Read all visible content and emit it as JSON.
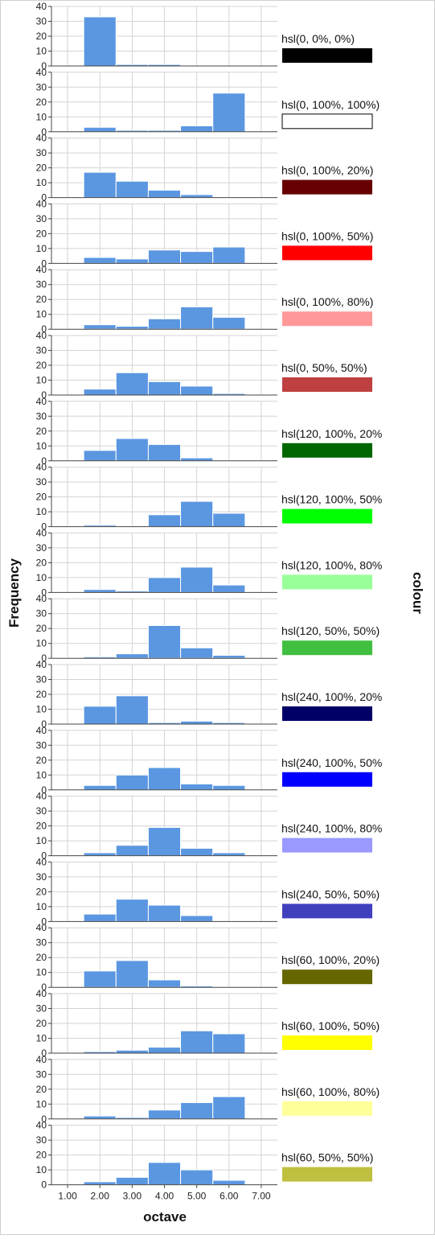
{
  "chart_data": {
    "type": "bar",
    "subtype": "histogram-panels",
    "xlabel": "octave",
    "ylabel": "Frequency",
    "panel_label": "colour",
    "x_ticks": [
      "1.00",
      "2.00",
      "3.00",
      "4.00",
      "5.00",
      "6.00",
      "7.00"
    ],
    "xlim": [
      0.5,
      7.5
    ],
    "ylim": [
      0,
      40
    ],
    "y_ticks": [
      "0",
      "10",
      "20",
      "30",
      "40"
    ],
    "bins": [
      2,
      3,
      4,
      5,
      6
    ],
    "grid": true,
    "bar_color": "#5b97e1",
    "panels": [
      {
        "label": "hsl(0, 0%, 0%)",
        "swatch": "#000000",
        "values": [
          33,
          1,
          1,
          0,
          0
        ]
      },
      {
        "label": "hsl(0, 100%, 100%)",
        "swatch": "#ffffff",
        "values": [
          3,
          1,
          1,
          4,
          26
        ]
      },
      {
        "label": "hsl(0, 100%, 20%)",
        "swatch": "#660000",
        "values": [
          17,
          11,
          5,
          2,
          0
        ]
      },
      {
        "label": "hsl(0, 100%, 50%)",
        "swatch": "#ff0000",
        "values": [
          4,
          3,
          9,
          8,
          11
        ]
      },
      {
        "label": "hsl(0, 100%, 80%)",
        "swatch": "#ff9999",
        "values": [
          3,
          2,
          7,
          15,
          8
        ]
      },
      {
        "label": "hsl(0, 50%, 50%)",
        "swatch": "#bf4040",
        "values": [
          4,
          15,
          9,
          6,
          1
        ]
      },
      {
        "label": "hsl(120, 100%, 20%",
        "swatch": "#006600",
        "values": [
          7,
          15,
          11,
          2,
          0
        ]
      },
      {
        "label": "hsl(120, 100%, 50%",
        "swatch": "#00ff00",
        "values": [
          1,
          0,
          8,
          17,
          9
        ]
      },
      {
        "label": "hsl(120, 100%, 80%",
        "swatch": "#99ff99",
        "values": [
          2,
          1,
          10,
          17,
          5
        ]
      },
      {
        "label": "hsl(120, 50%, 50%)",
        "swatch": "#40bf40",
        "values": [
          1,
          3,
          22,
          7,
          2
        ]
      },
      {
        "label": "hsl(240, 100%, 20%",
        "swatch": "#000066",
        "values": [
          12,
          19,
          1,
          2,
          1
        ]
      },
      {
        "label": "hsl(240, 100%, 50%",
        "swatch": "#0000ff",
        "values": [
          3,
          10,
          15,
          4,
          3
        ]
      },
      {
        "label": "hsl(240, 100%, 80%",
        "swatch": "#9999ff",
        "values": [
          2,
          7,
          19,
          5,
          2
        ]
      },
      {
        "label": "hsl(240, 50%, 50%)",
        "swatch": "#4040bf",
        "values": [
          5,
          15,
          11,
          4,
          0
        ]
      },
      {
        "label": "hsl(60, 100%, 20%)",
        "swatch": "#666600",
        "values": [
          11,
          18,
          5,
          1,
          0
        ]
      },
      {
        "label": "hsl(60, 100%, 50%)",
        "swatch": "#ffff00",
        "values": [
          1,
          2,
          4,
          15,
          13
        ]
      },
      {
        "label": "hsl(60, 100%, 80%)",
        "swatch": "#ffff99",
        "values": [
          2,
          1,
          6,
          11,
          15
        ]
      },
      {
        "label": "hsl(60, 50%, 50%)",
        "swatch": "#bfbf40",
        "values": [
          2,
          5,
          15,
          10,
          3
        ]
      }
    ]
  }
}
